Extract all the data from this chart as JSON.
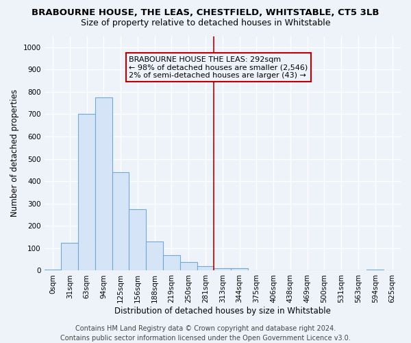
{
  "title": "BRABOURNE HOUSE, THE LEAS, CHESTFIELD, WHITSTABLE, CT5 3LB",
  "subtitle": "Size of property relative to detached houses in Whitstable",
  "xlabel": "Distribution of detached houses by size in Whitstable",
  "ylabel": "Number of detached properties",
  "categories": [
    "0sqm",
    "31sqm",
    "63sqm",
    "94sqm",
    "125sqm",
    "156sqm",
    "188sqm",
    "219sqm",
    "250sqm",
    "281sqm",
    "313sqm",
    "344sqm",
    "375sqm",
    "406sqm",
    "438sqm",
    "469sqm",
    "500sqm",
    "531sqm",
    "563sqm",
    "594sqm",
    "625sqm"
  ],
  "values": [
    5,
    125,
    700,
    775,
    440,
    275,
    130,
    70,
    37,
    20,
    10,
    10,
    0,
    0,
    0,
    0,
    0,
    0,
    0,
    5,
    0
  ],
  "bar_facecolor": "#d6e4f7",
  "bar_edgecolor": "#6faad4",
  "vline_color": "#c00000",
  "annotation_text": "BRABOURNE HOUSE THE LEAS: 292sqm\n← 98% of detached houses are smaller (2,546)\n2% of semi-detached houses are larger (43) →",
  "annotation_box_color": "#c00000",
  "ylim": [
    0,
    1050
  ],
  "yticks": [
    0,
    100,
    200,
    300,
    400,
    500,
    600,
    700,
    800,
    900,
    1000
  ],
  "footer": "Contains HM Land Registry data © Crown copyright and database right 2024.\nContains public sector information licensed under the Open Government Licence v3.0.",
  "bg_color": "#eef2f9",
  "grid_color": "#ffffff",
  "title_fontsize": 9.5,
  "subtitle_fontsize": 9,
  "axis_label_fontsize": 8.5,
  "tick_fontsize": 7.5,
  "annotation_fontsize": 8,
  "footer_fontsize": 7
}
